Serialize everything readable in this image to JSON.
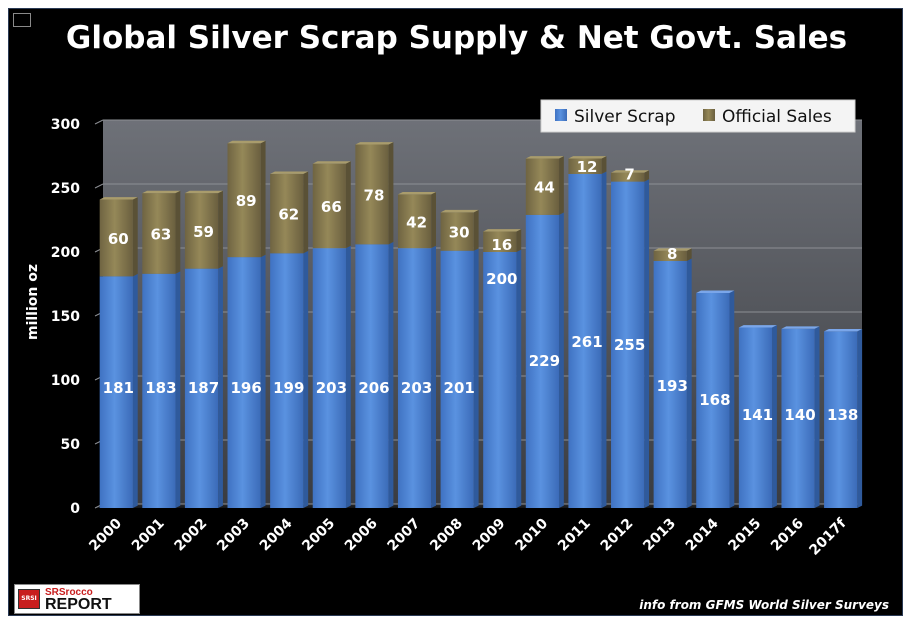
{
  "window": {
    "icon": "image-icon"
  },
  "chart_data": {
    "type": "bar",
    "stacked": true,
    "title": "Global Silver Scrap Supply & Net Govt. Sales",
    "ylabel": "million oz",
    "xlabel": "",
    "ylim": [
      0,
      300
    ],
    "yticks": [
      "0",
      "50",
      "100",
      "150",
      "200",
      "250",
      "300"
    ],
    "categories": [
      "2000",
      "2001",
      "2002",
      "2003",
      "2004",
      "2005",
      "2006",
      "2007",
      "2008",
      "2009",
      "2010",
      "2011",
      "2012",
      "2013",
      "2014",
      "2015",
      "2016",
      "2017f"
    ],
    "series": [
      {
        "name": "Silver Scrap",
        "color": "#4f86d6",
        "values": [
          181,
          183,
          187,
          196,
          199,
          203,
          206,
          203,
          201,
          200,
          229,
          261,
          255,
          193,
          168,
          141,
          140,
          138
        ],
        "labels": [
          "181",
          "183",
          "187",
          "196",
          "199",
          "203",
          "206",
          "203",
          "201",
          "200",
          "229",
          "261",
          "255",
          "193",
          "168",
          "141",
          "140",
          "138"
        ]
      },
      {
        "name": "Official Sales",
        "color": "#8c7f55",
        "values": [
          60,
          63,
          59,
          89,
          62,
          66,
          78,
          42,
          30,
          16,
          44,
          12,
          7,
          8,
          0,
          0,
          0,
          0
        ],
        "labels": [
          "60",
          "63",
          "59",
          "89",
          "62",
          "66",
          "78",
          "42",
          "30",
          "16",
          "44",
          "12",
          "7",
          "8",
          "",
          "",
          "",
          ""
        ]
      }
    ],
    "legend": {
      "position": "top-right"
    },
    "grid": true
  },
  "source_note": "info from GFMS World Silver Surveys",
  "logo": {
    "badge": "SRSI",
    "line1": "SRSrocco",
    "line2": "REPORT"
  }
}
